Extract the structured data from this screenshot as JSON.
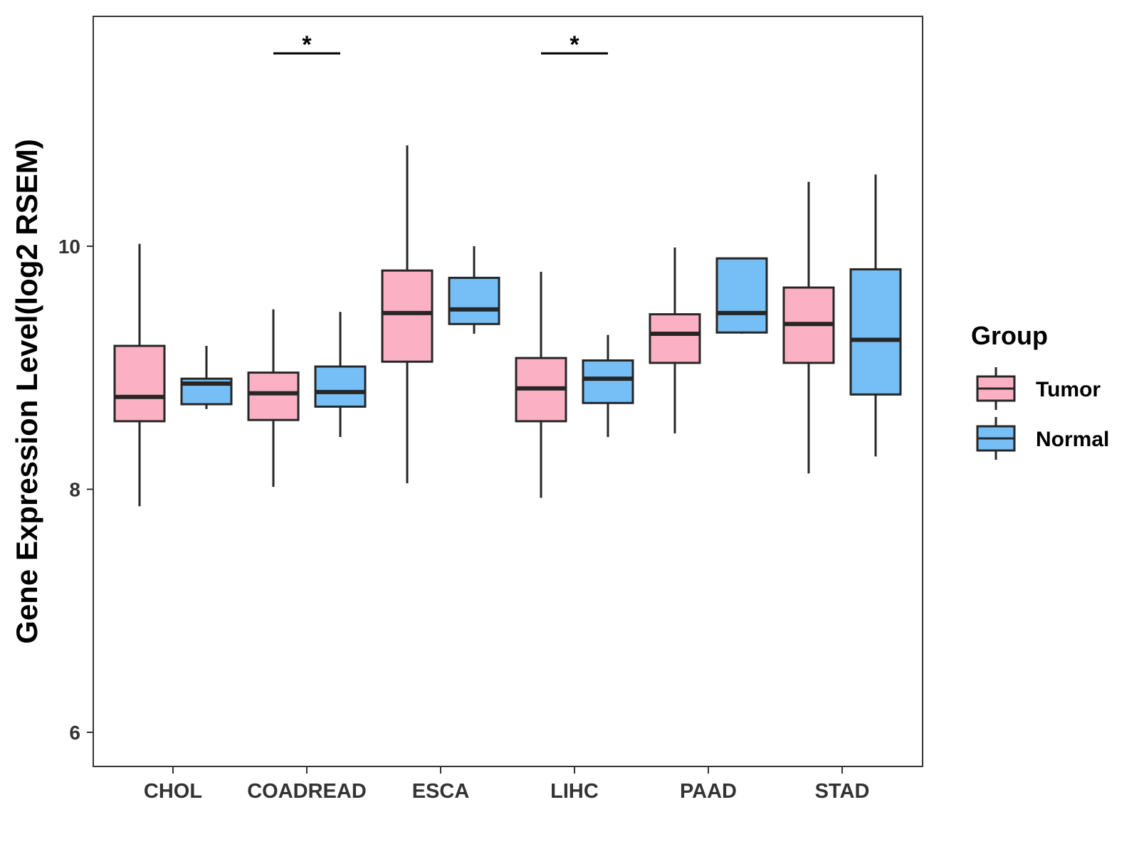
{
  "chart_data": {
    "type": "boxplot",
    "title": "",
    "xlabel": "",
    "ylabel": "Gene Expression Level(log2 RSEM)",
    "ylim": [
      5.7,
      11.9
    ],
    "yticks": [
      6,
      8,
      10
    ],
    "grid": false,
    "categories": [
      "CHOL",
      "COADREAD",
      "ESCA",
      "LIHC",
      "PAAD",
      "STAD"
    ],
    "legend": {
      "title": "Group",
      "placement": "right",
      "entries": [
        "Tumor",
        "Normal"
      ]
    },
    "colors": {
      "Tumor": "#FBB1C3",
      "Normal": "#75BFF6",
      "outline": "#262626"
    },
    "series": [
      {
        "name": "Tumor",
        "boxes": [
          {
            "min": 7.86,
            "q1": 8.56,
            "median": 8.76,
            "q3": 9.18,
            "max": 10.02
          },
          {
            "min": 8.02,
            "q1": 8.57,
            "median": 8.79,
            "q3": 8.96,
            "max": 9.48
          },
          {
            "min": 8.05,
            "q1": 9.05,
            "median": 9.45,
            "q3": 9.8,
            "max": 10.83
          },
          {
            "min": 7.93,
            "q1": 8.56,
            "median": 8.83,
            "q3": 9.08,
            "max": 9.79
          },
          {
            "min": 8.46,
            "q1": 9.04,
            "median": 9.28,
            "q3": 9.44,
            "max": 9.99
          },
          {
            "min": 8.13,
            "q1": 9.04,
            "median": 9.36,
            "q3": 9.66,
            "max": 10.53
          }
        ]
      },
      {
        "name": "Normal",
        "boxes": [
          {
            "min": 8.66,
            "q1": 8.7,
            "median": 8.87,
            "q3": 8.91,
            "max": 9.18
          },
          {
            "min": 8.43,
            "q1": 8.68,
            "median": 8.8,
            "q3": 9.01,
            "max": 9.46
          },
          {
            "min": 9.28,
            "q1": 9.36,
            "median": 9.48,
            "q3": 9.74,
            "max": 10.0
          },
          {
            "min": 8.43,
            "q1": 8.71,
            "median": 8.91,
            "q3": 9.06,
            "max": 9.27
          },
          {
            "min": 9.28,
            "q1": 9.29,
            "median": 9.45,
            "q3": 9.9,
            "max": 9.9
          },
          {
            "min": 8.27,
            "q1": 8.78,
            "median": 9.23,
            "q3": 9.81,
            "max": 10.59
          }
        ]
      }
    ],
    "annotations": [
      {
        "category": "COADREAD",
        "label": "*"
      },
      {
        "category": "LIHC",
        "label": "*"
      }
    ]
  }
}
